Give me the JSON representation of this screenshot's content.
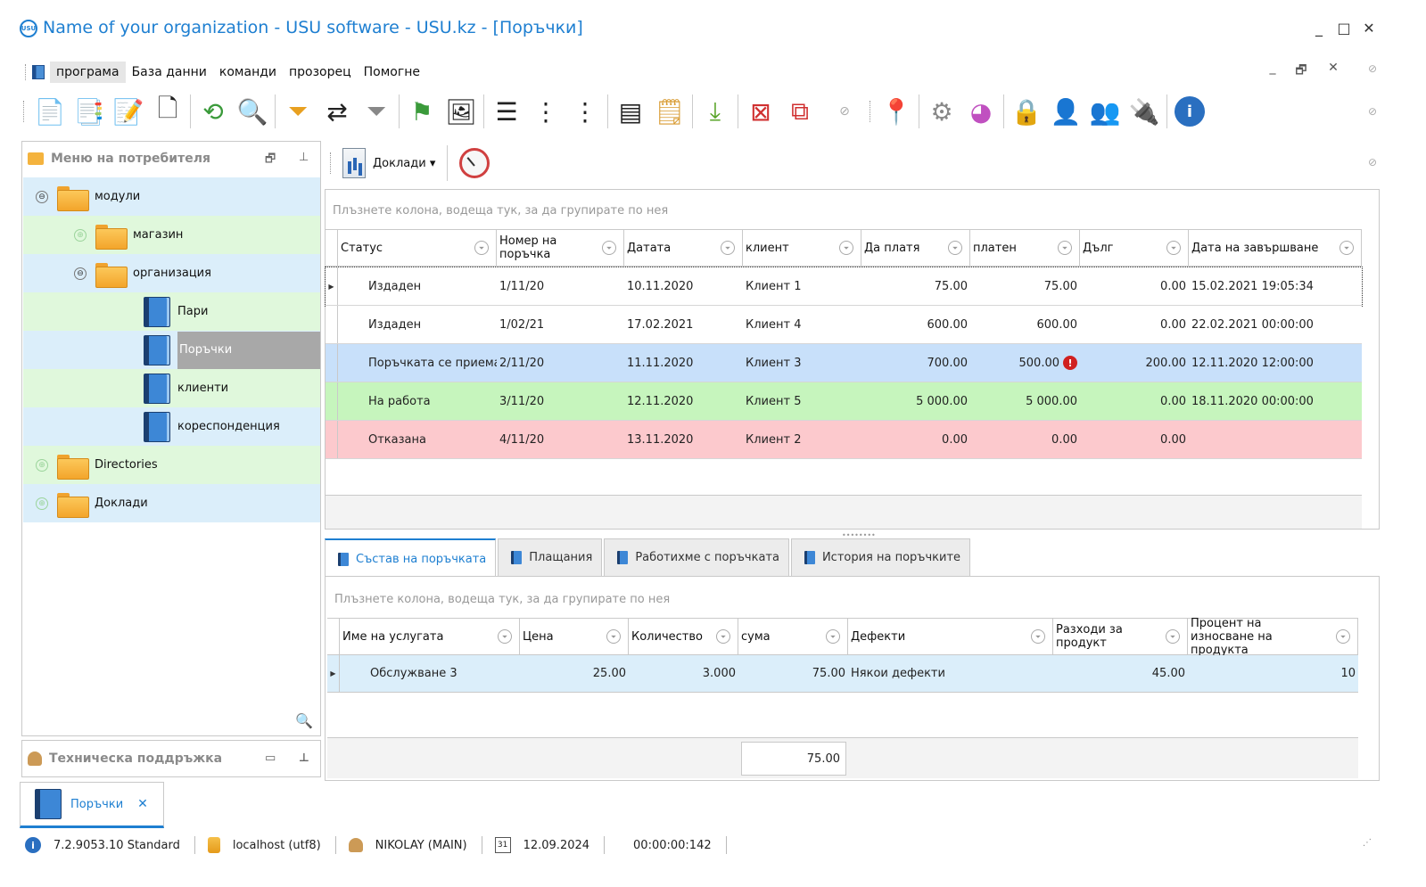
{
  "window": {
    "title": "Name of your organization - USU software - USU.kz - [Поръчки]",
    "logo_text": "USU",
    "minimize": "_",
    "maximize": "□",
    "close": "✕"
  },
  "menu": {
    "items": [
      "програма",
      "База данни",
      "команди",
      "прозорец",
      "Помогне"
    ],
    "mdi_minimize": "_",
    "mdi_restore": "🗗",
    "mdi_close": "✕"
  },
  "left_panel": {
    "title": "Меню на потребителя",
    "tree": [
      {
        "label": "модули",
        "type": "folder",
        "level": 0,
        "expander": "⊖"
      },
      {
        "label": "магазин",
        "type": "folder",
        "level": 1,
        "expander": "⊕"
      },
      {
        "label": "организация",
        "type": "folder",
        "level": 1,
        "expander": "⊖"
      },
      {
        "label": "Пари",
        "type": "book",
        "level": 2
      },
      {
        "label": "Поръчки",
        "type": "book",
        "level": 2,
        "selected": true
      },
      {
        "label": "клиенти",
        "type": "book",
        "level": 2
      },
      {
        "label": "кореспонденция",
        "type": "book",
        "level": 2
      },
      {
        "label": "Directories",
        "type": "folder",
        "level": 0,
        "expander": "⊕"
      },
      {
        "label": "Доклади",
        "type": "folder",
        "level": 0,
        "expander": "⊕"
      }
    ]
  },
  "support_panel": {
    "title": "Техническа поддръжка"
  },
  "reports_toolbar": {
    "reports_label": "Доклади"
  },
  "orders_grid": {
    "group_hint": "Плъзнете колона, водеща тук, за да групирате по нея",
    "columns": [
      "Статус",
      "Номер на поръчка",
      "Датата",
      "клиент",
      "Да платя",
      "платен",
      "Дълг",
      "Дата на завършване"
    ],
    "rows": [
      {
        "status": "Издаден",
        "number": "1/11/20",
        "date": "10.11.2020",
        "client": "Клиент 1",
        "to_pay": "75.00",
        "paid": "75.00",
        "debt": "0.00",
        "completed": "15.02.2021 19:05:34",
        "color": "#ffffff",
        "current": true
      },
      {
        "status": "Издаден",
        "number": "1/02/21",
        "date": "17.02.2021",
        "client": "Клиент 4",
        "to_pay": "600.00",
        "paid": "600.00",
        "debt": "0.00",
        "completed": "22.02.2021 00:00:00",
        "color": "#ffffff"
      },
      {
        "status": "Поръчката се приема",
        "number": "2/11/20",
        "date": "11.11.2020",
        "client": "Клиент 3",
        "to_pay": "700.00",
        "paid": "500.00",
        "debt": "200.00",
        "completed": "12.11.2020 12:00:00",
        "color": "#c8e0fa",
        "warning": true
      },
      {
        "status": "На работа",
        "number": "3/11/20",
        "date": "12.11.2020",
        "client": "Клиент 5",
        "to_pay": "5 000.00",
        "paid": "5 000.00",
        "debt": "0.00",
        "completed": "18.11.2020 00:00:00",
        "color": "#c6f5bd"
      },
      {
        "status": "Отказана",
        "number": "4/11/20",
        "date": "13.11.2020",
        "client": "Клиент 2",
        "to_pay": "0.00",
        "paid": "0.00",
        "debt": "0.00",
        "completed": "",
        "color": "#fcc9cd"
      }
    ]
  },
  "tabs": [
    "Състав на поръчката",
    "Плащания",
    "Работихме с поръчката",
    "История на поръчките"
  ],
  "composition_grid": {
    "group_hint": "Плъзнете колона, водеща тук, за да групирате по нея",
    "columns": [
      "Име на услугата",
      "Цена",
      "Количество",
      "сума",
      "Дефекти",
      "Разходи за продукт",
      "Процент на износване на продукта"
    ],
    "rows": [
      {
        "service": "Обслужване 3",
        "price": "25.00",
        "qty": "3.000",
        "sum": "75.00",
        "defects": "Някои дефекти",
        "expense": "45.00",
        "wear": "10"
      }
    ],
    "total_sum": "75.00"
  },
  "doc_tab": {
    "label": "Поръчки",
    "close": "✕"
  },
  "statusbar": {
    "version": "7.2.9053.10 Standard",
    "server": "localhost (utf8)",
    "user": "NIKOLAY (MAIN)",
    "calendar_day": "31",
    "date": "12.09.2024",
    "timer": "00:00:00:142"
  },
  "colors": {
    "accent": "#1e7fd1",
    "row_blue": "#c8e0fa",
    "row_green": "#c6f5bd",
    "row_red": "#fcc9cd"
  }
}
